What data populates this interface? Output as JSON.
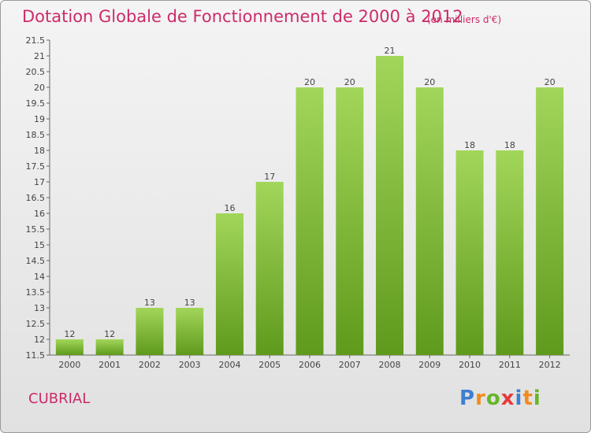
{
  "title": "Dotation Globale de Fonctionnement de 2000 à 2012",
  "unit_label": "(en milliers d'€)",
  "commune": "CUBRIAL",
  "logo": {
    "letters": [
      "P",
      "r",
      "o",
      "x",
      "i",
      "t",
      "i"
    ],
    "colors": [
      "#3d7fd1",
      "#f08c1e",
      "#67b52a",
      "#e63b3b",
      "#3d7fd1",
      "#f08c1e",
      "#67b52a"
    ]
  },
  "colors": {
    "accent": "#cc2b6a",
    "bar_top": "#a2d65a",
    "bar_bottom": "#5f9a1c"
  },
  "chart_data": {
    "type": "bar",
    "title": "Dotation Globale de Fonctionnement de 2000 à 2012",
    "ylabel": "(en milliers d'€)",
    "xlabel": "",
    "categories": [
      "2000",
      "2001",
      "2002",
      "2003",
      "2004",
      "2005",
      "2006",
      "2007",
      "2008",
      "2009",
      "2010",
      "2011",
      "2012"
    ],
    "values": [
      12,
      12,
      13,
      13,
      16,
      17,
      20,
      20,
      21,
      20,
      18,
      18,
      20
    ],
    "value_labels": [
      "12",
      "12",
      "13",
      "13",
      "16",
      "17",
      "20",
      "20",
      "21",
      "20",
      "18",
      "18",
      "20"
    ],
    "ylim": [
      11.5,
      21.5
    ],
    "yticks": [
      "11.5",
      "12",
      "12.5",
      "13",
      "13.5",
      "14",
      "14.5",
      "15",
      "15.5",
      "16",
      "16.5",
      "17",
      "17.5",
      "18",
      "18.5",
      "19",
      "19.5",
      "20",
      "20.5",
      "21",
      "21.5"
    ],
    "grid": false
  }
}
